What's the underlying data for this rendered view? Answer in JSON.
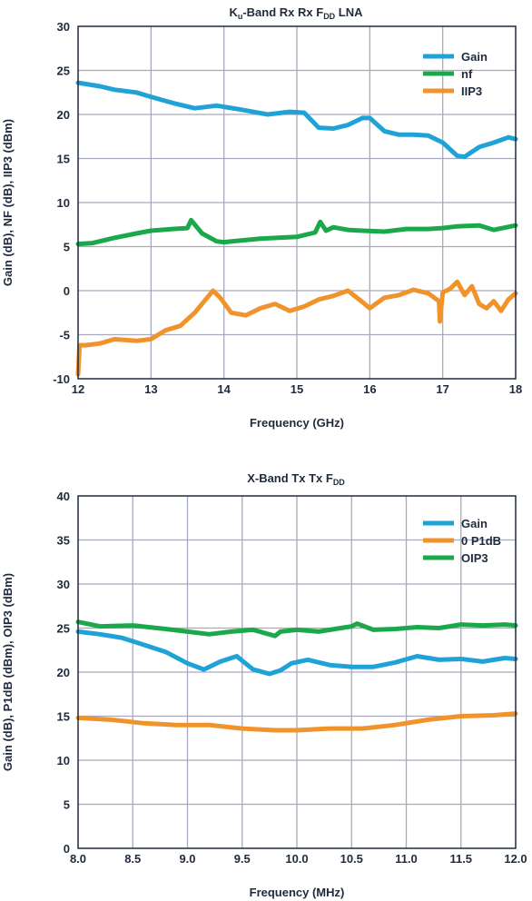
{
  "colors": {
    "blue": "#1fa3d6",
    "green": "#1aa84b",
    "orange": "#f0932b",
    "ink": "#1f2a3c",
    "grid": "#a9a9bd"
  },
  "chart_data": [
    {
      "type": "line",
      "title": "Ku-Band Rx Rx FDD LNA",
      "title_parts": {
        "a": "K",
        "a_sub": "u",
        "b": "-Band Rx Rx F",
        "b_sub": "DD",
        "c": " LNA"
      },
      "xlabel": "Frequency (GHz)",
      "ylabel": "Gain (dB), NF (dB), IIP3 (dBm)",
      "xlim": [
        12,
        18
      ],
      "ylim": [
        -10,
        30
      ],
      "xticks": [
        "12",
        "13",
        "14",
        "15",
        "16",
        "17",
        "18"
      ],
      "yticks": [
        "-10",
        "-5",
        "0",
        "5",
        "10",
        "15",
        "20",
        "25",
        "30"
      ],
      "grid": true,
      "legend_position": "top-right",
      "series": [
        {
          "name": "Gain",
          "color": "#1fa3d6",
          "x": [
            12.0,
            12.3,
            12.5,
            12.8,
            13.0,
            13.3,
            13.6,
            13.9,
            14.2,
            14.6,
            14.9,
            15.1,
            15.3,
            15.5,
            15.7,
            15.9,
            16.0,
            16.2,
            16.4,
            16.6,
            16.8,
            17.0,
            17.2,
            17.3,
            17.5,
            17.7,
            17.9,
            18.0
          ],
          "y": [
            23.6,
            23.2,
            22.8,
            22.5,
            22.0,
            21.3,
            20.7,
            21.0,
            20.6,
            20.0,
            20.3,
            20.2,
            18.5,
            18.4,
            18.8,
            19.6,
            19.6,
            18.1,
            17.7,
            17.7,
            17.6,
            16.8,
            15.3,
            15.2,
            16.3,
            16.8,
            17.4,
            17.2
          ]
        },
        {
          "name": "nf",
          "color": "#1aa84b",
          "x": [
            12.0,
            12.2,
            12.5,
            12.8,
            13.0,
            13.3,
            13.5,
            13.55,
            13.7,
            13.9,
            14.0,
            14.5,
            15.0,
            15.25,
            15.32,
            15.4,
            15.5,
            15.7,
            15.9,
            16.2,
            16.5,
            16.8,
            17.0,
            17.2,
            17.5,
            17.7,
            18.0
          ],
          "y": [
            5.3,
            5.4,
            6.0,
            6.5,
            6.8,
            7.0,
            7.1,
            8.0,
            6.5,
            5.6,
            5.5,
            5.9,
            6.1,
            6.6,
            7.8,
            6.8,
            7.2,
            6.9,
            6.8,
            6.7,
            7.0,
            7.0,
            7.1,
            7.3,
            7.4,
            6.9,
            7.4
          ]
        },
        {
          "name": "IIP3",
          "color": "#f0932b",
          "x": [
            12.0,
            12.02,
            12.1,
            12.3,
            12.5,
            12.8,
            13.0,
            13.2,
            13.4,
            13.6,
            13.75,
            13.85,
            13.95,
            14.1,
            14.3,
            14.5,
            14.7,
            14.9,
            15.1,
            15.3,
            15.5,
            15.7,
            15.9,
            16.0,
            16.2,
            16.4,
            16.6,
            16.8,
            16.95,
            16.96,
            17.0,
            17.1,
            17.2,
            17.3,
            17.4,
            17.5,
            17.6,
            17.7,
            17.8,
            17.9,
            18.0
          ],
          "y": [
            -9.5,
            -6.2,
            -6.2,
            -6.0,
            -5.5,
            -5.7,
            -5.5,
            -4.5,
            -4.0,
            -2.5,
            -1.0,
            0.0,
            -0.8,
            -2.5,
            -2.8,
            -2.0,
            -1.5,
            -2.3,
            -1.8,
            -1.0,
            -0.6,
            0.0,
            -1.3,
            -2.0,
            -0.8,
            -0.5,
            0.1,
            -0.3,
            -1.2,
            -3.5,
            -0.2,
            0.2,
            1.0,
            -0.5,
            0.5,
            -1.5,
            -2.0,
            -1.2,
            -2.3,
            -1.0,
            -0.3
          ]
        }
      ]
    },
    {
      "type": "line",
      "title": "X-Band Tx Tx FDD",
      "title_parts": {
        "a": "X-Band Tx Tx F",
        "a_sub": "DD"
      },
      "xlabel": "Frequency (MHz)",
      "ylabel": "Gain (dB), P1dB (dBm), OIP3 (dBm)",
      "xlim": [
        8.0,
        12.0
      ],
      "ylim": [
        0,
        40
      ],
      "xticks": [
        "8.0",
        "8.5",
        "9.0",
        "9.5",
        "10.0",
        "10.5",
        "11.0",
        "11.5",
        "12.0"
      ],
      "yticks": [
        "0",
        "5",
        "10",
        "15",
        "20",
        "25",
        "30",
        "35",
        "40"
      ],
      "grid": true,
      "legend_position": "top-right",
      "series": [
        {
          "name": "Gain",
          "color": "#1fa3d6",
          "x": [
            8.0,
            8.2,
            8.4,
            8.6,
            8.8,
            9.0,
            9.15,
            9.3,
            9.45,
            9.6,
            9.75,
            9.85,
            9.95,
            10.1,
            10.3,
            10.5,
            10.7,
            10.9,
            11.1,
            11.3,
            11.5,
            11.7,
            11.9,
            12.0
          ],
          "y": [
            24.6,
            24.3,
            23.9,
            23.1,
            22.3,
            21.0,
            20.3,
            21.2,
            21.8,
            20.3,
            19.8,
            20.2,
            21.0,
            21.4,
            20.8,
            20.6,
            20.6,
            21.1,
            21.8,
            21.4,
            21.5,
            21.2,
            21.6,
            21.5
          ]
        },
        {
          "name": "0 P1dB",
          "color": "#f0932b",
          "x": [
            8.0,
            8.3,
            8.6,
            8.9,
            9.2,
            9.5,
            9.8,
            10.0,
            10.3,
            10.6,
            10.9,
            11.2,
            11.5,
            11.8,
            12.0
          ],
          "y": [
            14.8,
            14.6,
            14.2,
            14.0,
            14.0,
            13.6,
            13.4,
            13.4,
            13.6,
            13.6,
            14.0,
            14.6,
            15.0,
            15.1,
            15.3
          ]
        },
        {
          "name": "OIP3",
          "color": "#1aa84b",
          "x": [
            8.0,
            8.2,
            8.5,
            8.8,
            9.0,
            9.2,
            9.4,
            9.6,
            9.8,
            9.85,
            10.0,
            10.2,
            10.5,
            10.55,
            10.7,
            10.9,
            11.1,
            11.3,
            11.5,
            11.7,
            11.9,
            12.0
          ],
          "y": [
            25.7,
            25.2,
            25.3,
            24.9,
            24.6,
            24.3,
            24.6,
            24.8,
            24.1,
            24.6,
            24.8,
            24.6,
            25.2,
            25.5,
            24.8,
            24.9,
            25.1,
            25.0,
            25.4,
            25.3,
            25.4,
            25.3
          ]
        }
      ]
    }
  ]
}
